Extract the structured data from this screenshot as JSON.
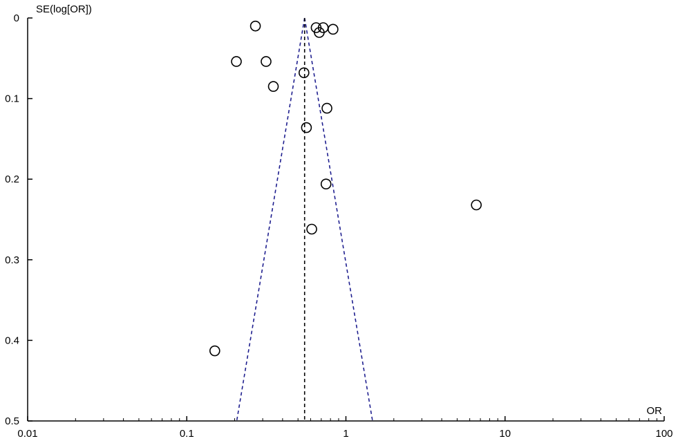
{
  "chart_data": {
    "type": "scatter",
    "title": "",
    "xlabel": "OR",
    "ylabel": "SE(log[OR])",
    "x_scale": "log",
    "y_inverted": true,
    "xlim": [
      0.01,
      100
    ],
    "ylim": [
      0,
      0.5
    ],
    "x_ticks": [
      "0.01",
      "0.1",
      "1",
      "10",
      "100"
    ],
    "y_ticks": [
      "0",
      "0.1",
      "0.2",
      "0.3",
      "0.4",
      "0.5"
    ],
    "grid": false,
    "marker": "open-circle",
    "pooled_or": 0.55,
    "funnel": {
      "apex": [
        0.55,
        0
      ],
      "left_bottom": [
        0.206,
        0.5
      ],
      "right_bottom": [
        1.47,
        0.5
      ]
    },
    "points": [
      {
        "x": 0.27,
        "y": 0.01
      },
      {
        "x": 0.65,
        "y": 0.012
      },
      {
        "x": 0.72,
        "y": 0.012
      },
      {
        "x": 0.83,
        "y": 0.014
      },
      {
        "x": 0.68,
        "y": 0.018
      },
      {
        "x": 0.205,
        "y": 0.054
      },
      {
        "x": 0.315,
        "y": 0.054
      },
      {
        "x": 0.545,
        "y": 0.068
      },
      {
        "x": 0.35,
        "y": 0.085
      },
      {
        "x": 0.76,
        "y": 0.112
      },
      {
        "x": 0.565,
        "y": 0.136
      },
      {
        "x": 0.75,
        "y": 0.206
      },
      {
        "x": 6.6,
        "y": 0.232
      },
      {
        "x": 0.61,
        "y": 0.262
      },
      {
        "x": 0.15,
        "y": 0.413
      }
    ],
    "colors": {
      "axis": "#000000",
      "funnel": "#1f1f8f",
      "pooled_line": "#000000",
      "marker": "#000000"
    }
  }
}
